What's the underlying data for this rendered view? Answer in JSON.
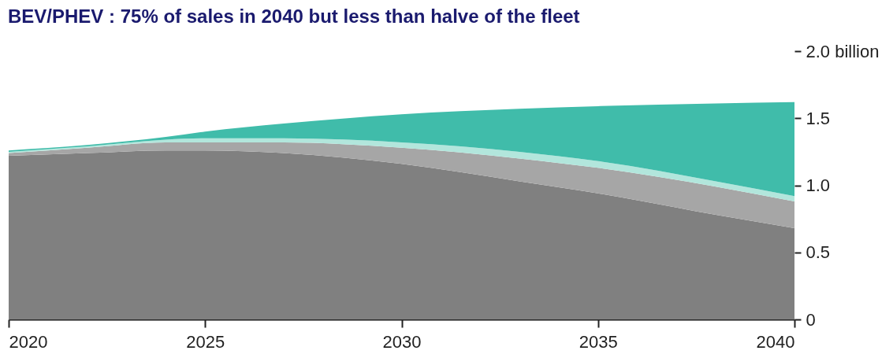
{
  "chart_data": {
    "type": "area",
    "stacked": true,
    "title": "BEV/PHEV : 75% of sales in 2040 but less than halve of the fleet",
    "x": [
      2020,
      2022,
      2024,
      2025,
      2027,
      2030,
      2033,
      2035,
      2038,
      2040
    ],
    "series": [
      {
        "color": "#808080",
        "values": [
          1.22,
          1.24,
          1.26,
          1.26,
          1.24,
          1.16,
          1.03,
          0.94,
          0.78,
          0.68
        ]
      },
      {
        "color": "#a6a6a6",
        "values": [
          0.02,
          0.04,
          0.06,
          0.06,
          0.08,
          0.12,
          0.17,
          0.19,
          0.21,
          0.2
        ]
      },
      {
        "color": "#b2e6dc",
        "values": [
          0.01,
          0.01,
          0.02,
          0.03,
          0.03,
          0.04,
          0.05,
          0.05,
          0.04,
          0.04
        ]
      },
      {
        "color": "#40bcaa",
        "values": [
          0.01,
          0.01,
          0.02,
          0.05,
          0.11,
          0.21,
          0.32,
          0.41,
          0.58,
          0.7
        ]
      }
    ],
    "xlim": [
      2020,
      2040
    ],
    "xticks": [
      2020,
      2025,
      2030,
      2035,
      2040
    ],
    "ylim": [
      0,
      2.0
    ],
    "yticks": [
      0,
      0.5,
      {
        "value": 1.0,
        "label": "1.0"
      },
      1.5,
      {
        "value": 2.0,
        "label": "2.0 billion"
      }
    ],
    "grid": false
  }
}
